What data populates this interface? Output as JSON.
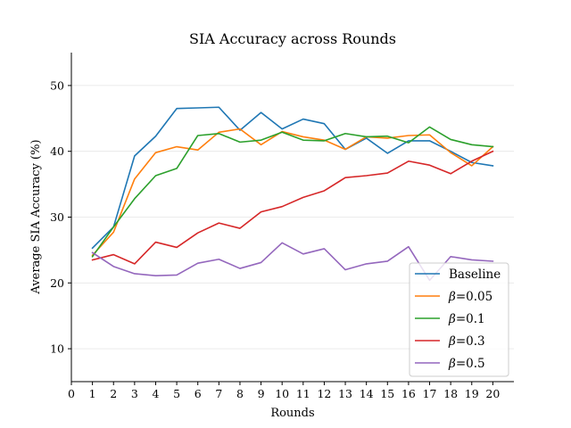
{
  "chart_data": {
    "type": "line",
    "title": "SIA Accuracy across Rounds",
    "xlabel": "Rounds",
    "ylabel": "Average SIA Accuracy (%)",
    "xlim": [
      0,
      21
    ],
    "ylim": [
      5,
      55
    ],
    "xticks": [
      0,
      1,
      2,
      3,
      4,
      5,
      6,
      7,
      8,
      9,
      10,
      11,
      12,
      13,
      14,
      15,
      16,
      17,
      18,
      19,
      20
    ],
    "yticks": [
      10,
      20,
      30,
      40,
      50
    ],
    "grid": "horizontal",
    "legend_position": "lower-right",
    "x": [
      1,
      2,
      3,
      4,
      5,
      6,
      7,
      8,
      9,
      10,
      11,
      12,
      13,
      14,
      15,
      16,
      17,
      18,
      19,
      20
    ],
    "series": [
      {
        "name": "Baseline",
        "color": "#1f77b4",
        "values": [
          25.3,
          28.5,
          39.3,
          42.3,
          46.5,
          46.6,
          46.7,
          43.2,
          45.9,
          43.4,
          44.9,
          44.2,
          40.3,
          42.0,
          39.7,
          41.6,
          41.6,
          40.0,
          38.3,
          37.8
        ]
      },
      {
        "name_symbol": "β",
        "name_rest": "=0.05",
        "color": "#ff7f0e",
        "values": [
          24.2,
          27.7,
          35.8,
          39.8,
          40.7,
          40.2,
          42.9,
          43.4,
          41.0,
          43.0,
          42.2,
          41.7,
          40.3,
          42.2,
          42.0,
          42.4,
          42.5,
          39.8,
          37.8,
          40.7
        ]
      },
      {
        "name_symbol": "β",
        "name_rest": "=0.1",
        "color": "#2ca02c",
        "values": [
          24.0,
          28.5,
          32.8,
          36.3,
          37.4,
          42.4,
          42.7,
          41.4,
          41.7,
          42.9,
          41.7,
          41.6,
          42.7,
          42.2,
          42.3,
          41.3,
          43.7,
          41.8,
          41.0,
          40.7
        ]
      },
      {
        "name_symbol": "β",
        "name_rest": "=0.3",
        "color": "#d62728",
        "values": [
          23.5,
          24.3,
          22.9,
          26.2,
          25.4,
          27.6,
          29.1,
          28.3,
          30.8,
          31.6,
          33.0,
          34.0,
          36.0,
          36.3,
          36.7,
          38.5,
          37.9,
          36.6,
          38.5,
          40.0
        ]
      },
      {
        "name_symbol": "β",
        "name_rest": "=0.5",
        "color": "#9467bd",
        "values": [
          24.6,
          22.5,
          21.4,
          21.1,
          21.2,
          23.0,
          23.6,
          22.2,
          23.1,
          26.1,
          24.4,
          25.2,
          22.0,
          22.9,
          23.3,
          25.5,
          20.4,
          24.0,
          23.5,
          23.3
        ]
      }
    ]
  }
}
